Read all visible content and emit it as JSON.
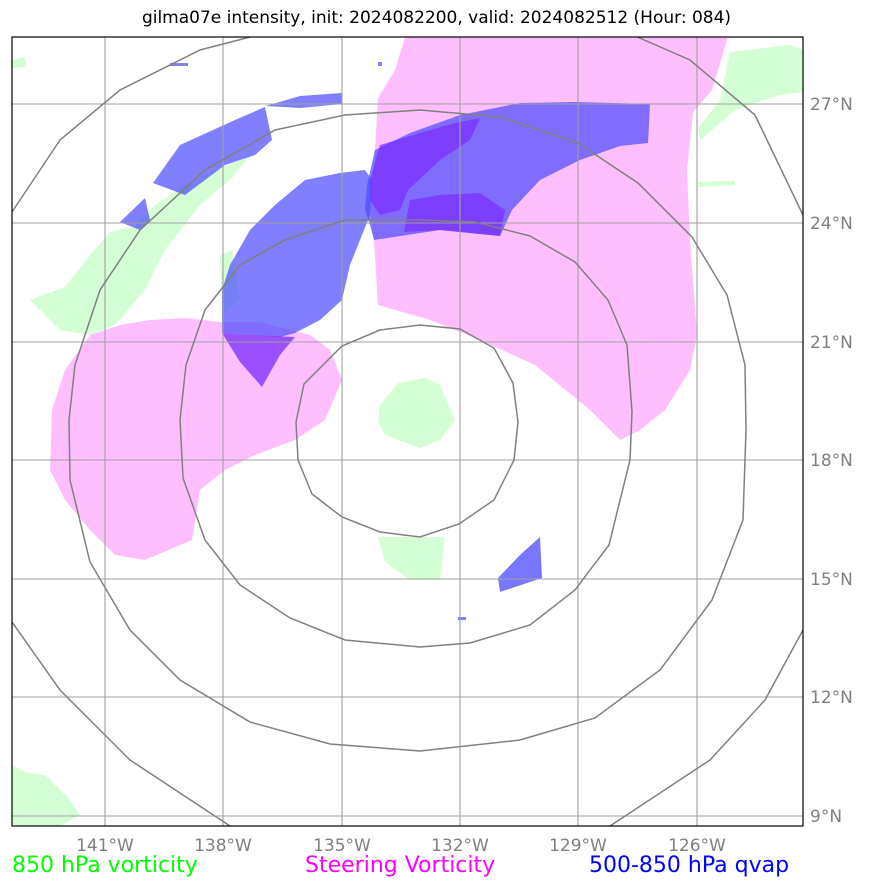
{
  "title": "gilma07e intensity, init: 2024082200, valid: 2024082512 (Hour: 084)",
  "longitude_labels": [
    "141°W",
    "138°W",
    "135°W",
    "132°W",
    "129°W",
    "126°W"
  ],
  "latitude_labels": [
    "27°N",
    "24°N",
    "21°N",
    "18°N",
    "15°N",
    "12°N",
    "9°N"
  ],
  "legend": [
    {
      "label": "850 hPa vorticity",
      "color": "#00ff00"
    },
    {
      "label": "Steering Vorticity",
      "color": "#ff00ff"
    },
    {
      "label": "500-850 hPa qvap",
      "color": "#0000ff"
    }
  ],
  "colors": {
    "vorticity_850": "#ccffcc",
    "steering_vorticity": "#ffaaff",
    "qvap": "#3333ff",
    "qvap_dark": "#7a2bff",
    "grid": "#a0a0a0",
    "range_rings": "#808080"
  }
}
